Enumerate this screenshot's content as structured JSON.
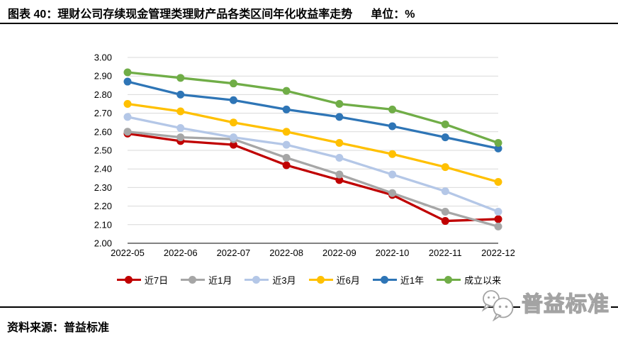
{
  "header": {
    "title": "图表 40：理财公司存续现金管理类理财产品各类区间年化收益率走势",
    "unit": "单位：%"
  },
  "chart_data": {
    "type": "line",
    "title": "理财公司存续现金管理类理财产品各类区间年化收益率走势",
    "unit": "%",
    "categories": [
      "2022-05",
      "2022-06",
      "2022-07",
      "2022-08",
      "2022-09",
      "2022-10",
      "2022-11",
      "2022-12"
    ],
    "series": [
      {
        "name": "近7日",
        "color": "#C00000",
        "values": [
          2.59,
          2.55,
          2.53,
          2.42,
          2.34,
          2.26,
          2.12,
          2.13
        ]
      },
      {
        "name": "近1月",
        "color": "#A6A6A6",
        "values": [
          2.6,
          2.57,
          2.56,
          2.46,
          2.37,
          2.27,
          2.17,
          2.09
        ]
      },
      {
        "name": "近3月",
        "color": "#B4C7E7",
        "values": [
          2.68,
          2.62,
          2.57,
          2.53,
          2.46,
          2.37,
          2.28,
          2.17
        ]
      },
      {
        "name": "近6月",
        "color": "#FFC000",
        "values": [
          2.75,
          2.71,
          2.65,
          2.6,
          2.54,
          2.48,
          2.41,
          2.33
        ]
      },
      {
        "name": "近1年",
        "color": "#2E75B6",
        "values": [
          2.87,
          2.8,
          2.77,
          2.72,
          2.68,
          2.63,
          2.57,
          2.51
        ]
      },
      {
        "name": "成立以来",
        "color": "#70AD47",
        "values": [
          2.92,
          2.89,
          2.86,
          2.82,
          2.75,
          2.72,
          2.64,
          2.54
        ]
      }
    ],
    "ylim": [
      2.0,
      3.0
    ],
    "yticks": [
      "2.00",
      "2.10",
      "2.20",
      "2.30",
      "2.40",
      "2.50",
      "2.60",
      "2.70",
      "2.80",
      "2.90",
      "3.00"
    ],
    "grid": true,
    "legend_position": "bottom",
    "gridline_color": "#D9D9D9",
    "axis_line_color": "#595959",
    "tick_label_color": "#000000"
  },
  "footer": {
    "source": "资料来源：普益标准"
  },
  "watermark": {
    "icon": "wechat-icon",
    "text": "普益标准"
  }
}
